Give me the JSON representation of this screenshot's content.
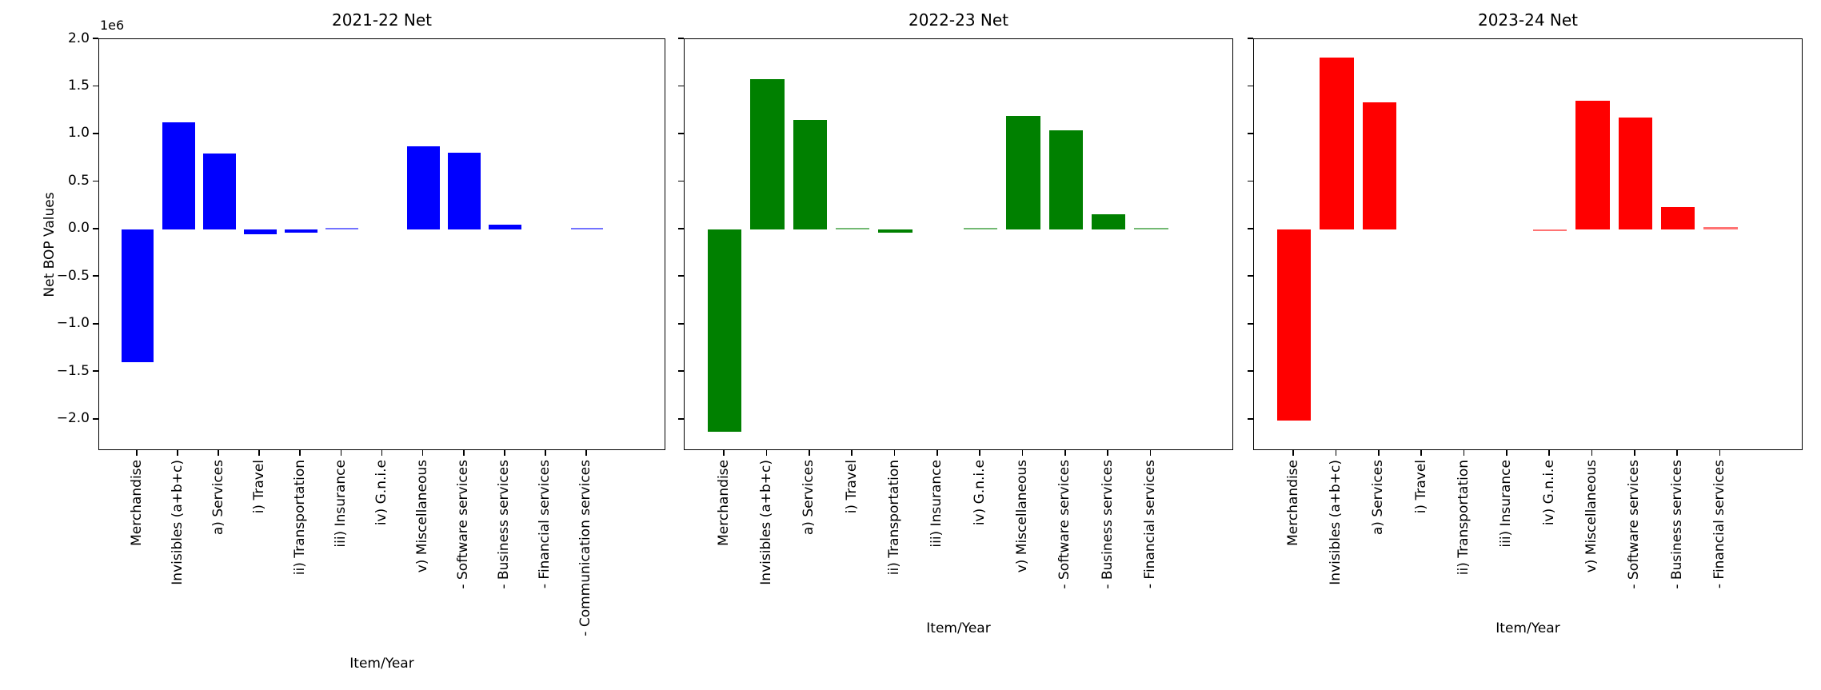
{
  "figure": {
    "ylabel": "Net BOP Values",
    "xlabel": "Item/Year",
    "offset_text": "1e6",
    "ytick_labels": [
      "2.0",
      "1.5",
      "1.0",
      "0.5",
      "0.0",
      "−0.5",
      "−1.0",
      "−1.5",
      "−2.0"
    ],
    "ytick_values": [
      2000000,
      1500000,
      1000000,
      500000,
      0,
      -500000,
      -1000000,
      -1500000,
      -2000000
    ],
    "ylim": [
      -2330000,
      2000000
    ],
    "grid": false,
    "legend": "none"
  },
  "chart_data": [
    {
      "type": "bar",
      "title": "2021-22 Net",
      "color": "#0000ff",
      "xlabel": "Item/Year",
      "ylabel": "Net BOP Values",
      "ylim": [
        -2330000,
        2000000
      ],
      "categories": [
        "Merchandise",
        "Invisibles (a+b+c)",
        "a) Services",
        "i) Travel",
        "ii) Transportation",
        "iii) Insurance",
        "iv) G.n.i.e",
        "v) Miscellaneous",
        "- Software services",
        "- Business services",
        "- Financial services",
        "- Communication services"
      ],
      "values": [
        -1400000,
        1130000,
        800000,
        -55000,
        -35000,
        10000,
        2000,
        870000,
        810000,
        50000,
        -2000,
        12000
      ]
    },
    {
      "type": "bar",
      "title": "2022-23 Net",
      "color": "#008000",
      "xlabel": "Item/Year",
      "ylabel": "Net BOP Values",
      "ylim": [
        -2330000,
        2000000
      ],
      "categories": [
        "Merchandise",
        "Invisibles (a+b+c)",
        "a) Services",
        "i) Travel",
        "ii) Transportation",
        "iii) Insurance",
        "iv) G.n.i.e",
        "v) Miscellaneous",
        "- Software services",
        "- Business services",
        "- Financial services"
      ],
      "values": [
        -2130000,
        1580000,
        1150000,
        8000,
        -35000,
        1000,
        8000,
        1190000,
        1040000,
        160000,
        14000
      ]
    },
    {
      "type": "bar",
      "title": "2023-24 Net",
      "color": "#ff0000",
      "xlabel": "Item/Year",
      "ylabel": "Net BOP Values",
      "ylim": [
        -2330000,
        2000000
      ],
      "categories": [
        "Merchandise",
        "Invisibles (a+b+c)",
        "a) Services",
        "i) Travel",
        "ii) Transportation",
        "iii) Insurance",
        "iv) G.n.i.e",
        "v) Miscellaneous",
        "- Software services",
        "- Business services",
        "- Financial services"
      ],
      "values": [
        -2010000,
        1810000,
        1340000,
        1000,
        1000,
        1000,
        -8000,
        1350000,
        1180000,
        235000,
        22000
      ]
    }
  ]
}
